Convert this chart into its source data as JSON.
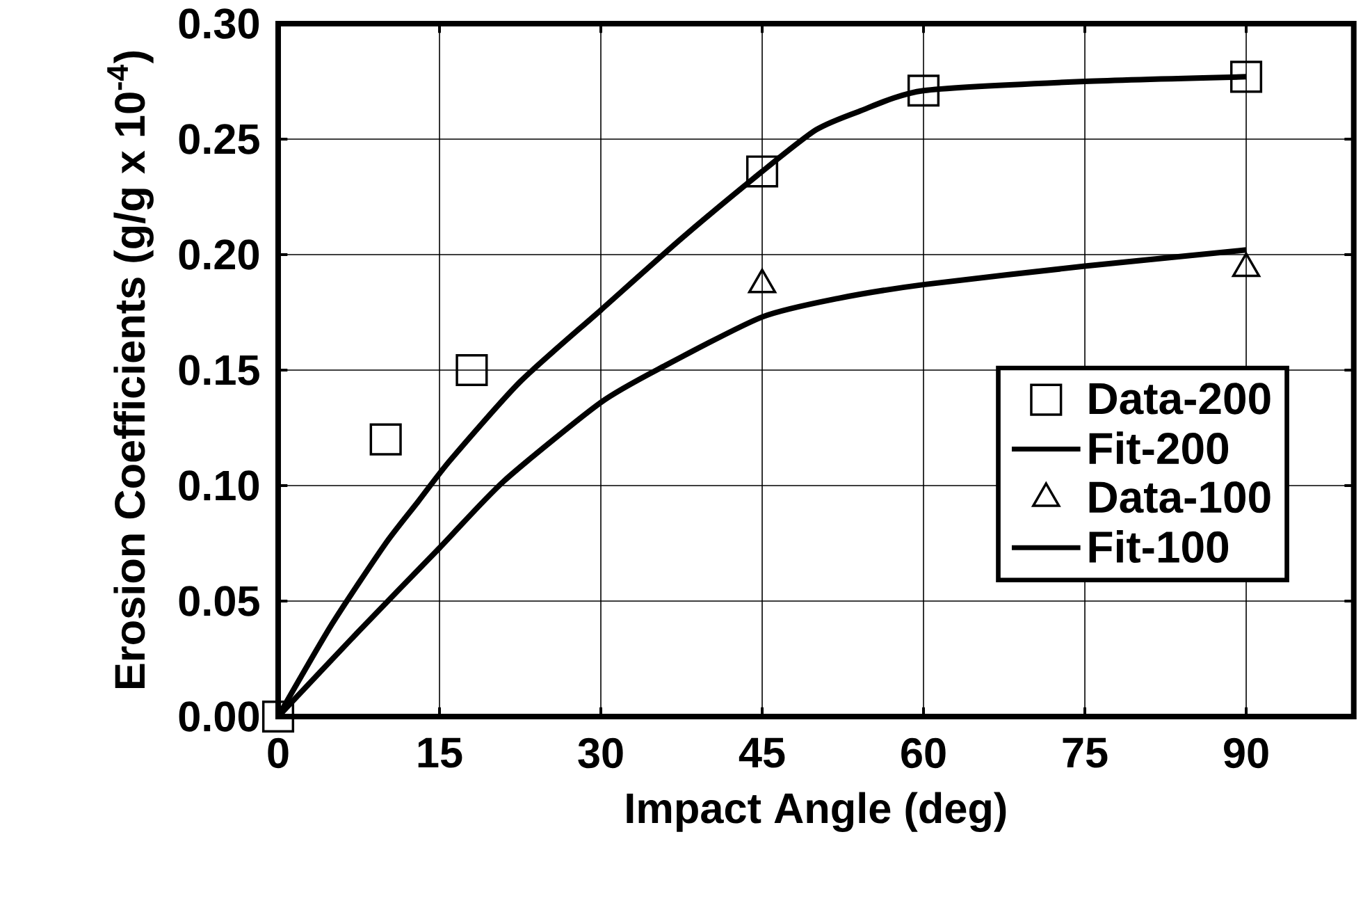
{
  "chart_data": {
    "type": "scatter",
    "xlabel": "Impact Angle (deg)",
    "ylabel": "Erosion Coefficients (g/g x 10$^{-4}$)",
    "xlim": [
      0,
      100
    ],
    "ylim": [
      0,
      0.3
    ],
    "xticks": [
      0,
      15,
      30,
      45,
      60,
      75,
      90
    ],
    "yticks": [
      {
        "value": 0,
        "label": "0.00"
      },
      {
        "value": 0.05,
        "label": "0.05"
      },
      {
        "value": 0.1,
        "label": "0.10"
      },
      {
        "value": 0.15,
        "label": "0.15"
      },
      {
        "value": 0.2,
        "label": "0.20"
      },
      {
        "value": 0.25,
        "label": "0.25"
      },
      {
        "value": 0.3,
        "label": "0.30"
      }
    ],
    "grid": true,
    "legend": "right",
    "series": [
      {
        "name": "Data-200",
        "marker": "square",
        "color": "#000000",
        "x": [
          0,
          10,
          18,
          45,
          60,
          90
        ],
        "values": [
          0,
          0.12,
          0.15,
          0.236,
          0.271,
          0.277
        ]
      },
      {
        "name": "Fit-200",
        "type": "line",
        "marker": "none",
        "line_style": "solid",
        "color": "#000000",
        "x": [
          0,
          5,
          10,
          13,
          16,
          22.5,
          30,
          37.5,
          45,
          50,
          54,
          60,
          75,
          90
        ],
        "values": [
          0,
          0.04,
          0.075,
          0.093,
          0.111,
          0.145,
          0.176,
          0.207,
          0.236,
          0.254,
          0.262,
          0.271,
          0.275,
          0.277
        ]
      },
      {
        "name": "Data-100",
        "marker": "triangle",
        "color": "#000000",
        "x": [
          45,
          90
        ],
        "values": [
          0.187,
          0.194
        ]
      },
      {
        "name": "Fit-100",
        "type": "line",
        "marker": "none",
        "line_style": "solid",
        "color": "#000000",
        "x": [
          0,
          7.5,
          15,
          21,
          30,
          36,
          45,
          52,
          60,
          75,
          90
        ],
        "values": [
          0,
          0.037,
          0.073,
          0.102,
          0.136,
          0.152,
          0.173,
          0.181,
          0.187,
          0.195,
          0.202
        ]
      }
    ]
  }
}
